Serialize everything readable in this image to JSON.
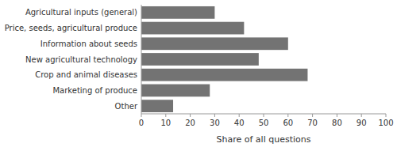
{
  "chart_data": {
    "type": "bar",
    "orientation": "horizontal",
    "categories": [
      "Other",
      "Marketing of produce",
      "Crop and animal diseases",
      "New agricultural technology",
      "Information about seeds",
      "Price, seeds, agricultural produce",
      "Agricultural inputs (general)"
    ],
    "values": [
      13,
      28,
      68,
      48,
      60,
      42,
      30
    ],
    "color": "#737373",
    "xlabel": "Share of all questions",
    "xlim": [
      0,
      100
    ],
    "xticks": [
      0,
      10,
      20,
      30,
      40,
      50,
      60,
      70,
      80,
      90,
      100
    ],
    "grid": false
  }
}
